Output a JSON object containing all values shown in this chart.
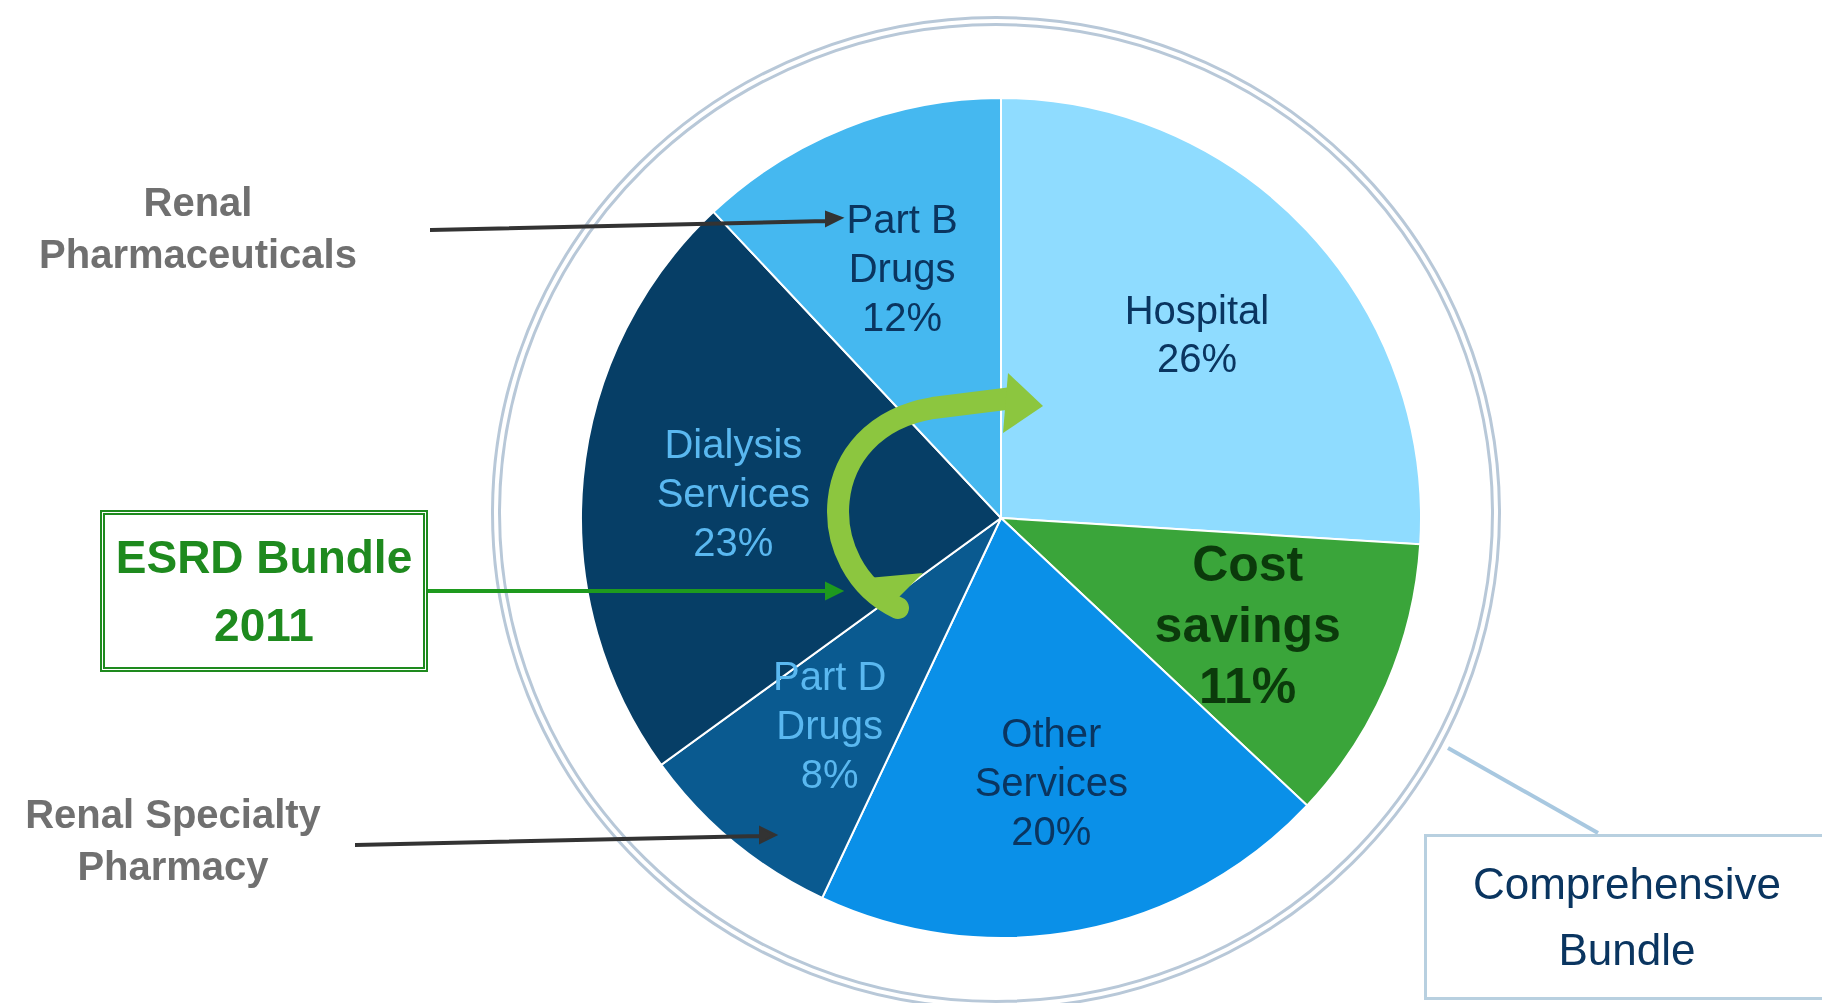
{
  "chart_data": {
    "type": "pie",
    "categories": [
      "Hospital",
      "Cost savings",
      "Other Services",
      "Part D Drugs",
      "Dialysis Services",
      "Part B Drugs"
    ],
    "values": [
      26,
      11,
      20,
      8,
      23,
      12
    ],
    "value_labels": [
      "26%",
      "11%",
      "20%",
      "8%",
      "23%",
      "12%"
    ],
    "colors": [
      "#8fdcff",
      "#3aa53a",
      "#0a90e8",
      "#0a5a90",
      "#063e66",
      "#45b8f0"
    ],
    "annotations": [
      "Renal Pharmaceuticals",
      "ESRD Bundle 2011",
      "Renal Specialty Pharmacy",
      "Comprehensive Bundle"
    ],
    "legend": false
  }
}
